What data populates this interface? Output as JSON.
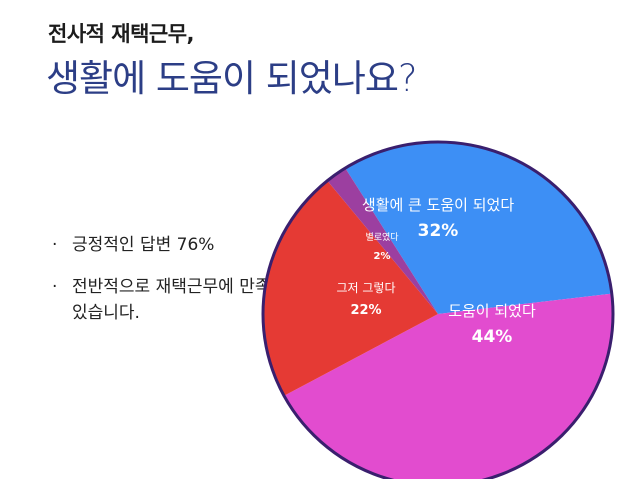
{
  "header": {
    "title_line1": "전사적 재택근무,",
    "title_line2": "생활에 도움이 되었나요?"
  },
  "bullets": [
    {
      "marker": "·",
      "text": "긍정적인 답변 76%"
    },
    {
      "marker": "·",
      "text": "전반적으로 재택근무에 만족하고 있습니다."
    }
  ],
  "chart_data": {
    "type": "pie",
    "title": "",
    "slices": [
      {
        "label": "생활에 큰 도움이 되었다",
        "value": 32,
        "value_label": "32%",
        "color": "#3d8ff5"
      },
      {
        "label": "도움이 되었다",
        "value": 44,
        "value_label": "44%",
        "color": "#e24ccf"
      },
      {
        "label": "그저 그렇다",
        "value": 22,
        "value_label": "22%",
        "color": "#e53a34"
      },
      {
        "label": "별로였다",
        "value": 2,
        "value_label": "2%",
        "color": "#9c3fa0"
      }
    ],
    "border_color": "#3a1f6e",
    "legend": "none",
    "labels_position": "inside"
  }
}
